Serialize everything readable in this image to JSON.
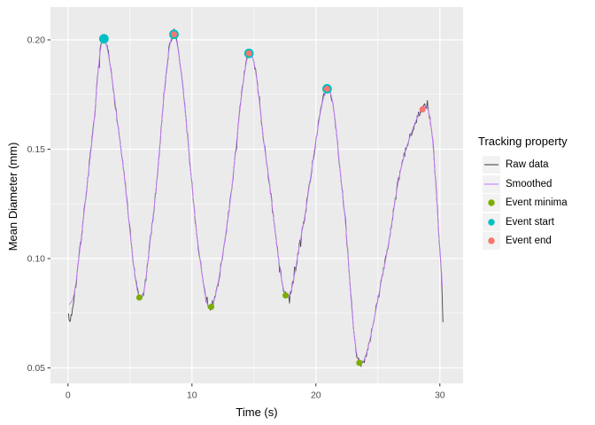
{
  "chart_data": {
    "type": "line",
    "title": "",
    "xlabel": "Time (s)",
    "ylabel": "Mean Diameter (mm)",
    "legend_title": "Tracking property",
    "legend_position": "right",
    "grid": true,
    "panel_bg": "#EBEBEB",
    "grid_color": "#FFFFFF",
    "key_bg": "#F2F2F2",
    "axis_text_color": "#4D4D4D",
    "x_domain": [
      -1.45,
      31.85
    ],
    "y_domain": [
      0.0428,
      0.2145
    ],
    "x_ticks": [
      0,
      10,
      20,
      30
    ],
    "x_tick_labels": [
      "0",
      "10",
      "20",
      "30"
    ],
    "x_minor_ticks": [
      5,
      15,
      25
    ],
    "y_ticks": [
      0.05,
      0.1,
      0.15,
      0.2
    ],
    "y_tick_labels": [
      "0.05",
      "0.10",
      "0.15",
      "0.20"
    ],
    "y_minor_ticks": [
      0.075,
      0.125,
      0.175
    ],
    "series": [
      {
        "name": "Raw data",
        "kind": "line",
        "color": "#454545",
        "width": 0.9,
        "noise_amplitude": 0.0016,
        "points": [
          [
            0.05,
            0.073
          ],
          [
            0.15,
            0.0715
          ],
          [
            0.5,
            0.082
          ],
          [
            1,
            0.106
          ],
          [
            2,
            0.157
          ],
          [
            2.9,
            0.2005
          ],
          [
            4.3,
            0.149
          ],
          [
            5.76,
            0.082
          ],
          [
            6.9,
            0.121
          ],
          [
            8.55,
            0.2025
          ],
          [
            10.5,
            0.106
          ],
          [
            11.55,
            0.0778
          ],
          [
            12.9,
            0.118
          ],
          [
            14.6,
            0.1938
          ],
          [
            16,
            0.145
          ],
          [
            17.55,
            0.0832
          ],
          [
            18.9,
            0.113
          ],
          [
            20.9,
            0.1776
          ],
          [
            22.2,
            0.127
          ],
          [
            23.5,
            0.0522
          ],
          [
            25.5,
            0.096
          ],
          [
            26.9,
            0.142
          ],
          [
            28.55,
            0.1685
          ],
          [
            29.3,
            0.16
          ],
          [
            29.9,
            0.113
          ],
          [
            30.18,
            0.0855
          ],
          [
            30.25,
            0.071
          ]
        ]
      },
      {
        "name": "Smoothed",
        "kind": "line",
        "color": "#C77CFF",
        "width": 0.9,
        "points": [
          [
            0.1,
            0.079
          ],
          [
            0.5,
            0.084
          ],
          [
            1,
            0.106
          ],
          [
            2,
            0.157
          ],
          [
            2.9,
            0.2005
          ],
          [
            4.3,
            0.149
          ],
          [
            5.76,
            0.082
          ],
          [
            6.9,
            0.121
          ],
          [
            8.55,
            0.2025
          ],
          [
            10.5,
            0.106
          ],
          [
            11.55,
            0.0778
          ],
          [
            12.9,
            0.118
          ],
          [
            14.6,
            0.1938
          ],
          [
            16,
            0.145
          ],
          [
            17.55,
            0.0832
          ],
          [
            18.9,
            0.113
          ],
          [
            20.9,
            0.1776
          ],
          [
            22.2,
            0.127
          ],
          [
            23.5,
            0.0522
          ],
          [
            25.5,
            0.096
          ],
          [
            26.9,
            0.142
          ],
          [
            28.55,
            0.1685
          ],
          [
            29.3,
            0.16
          ],
          [
            29.9,
            0.113
          ],
          [
            30.2,
            0.0875
          ]
        ]
      },
      {
        "name": "Event minima",
        "kind": "scatter",
        "color": "#7CAE00",
        "radius": 3.5,
        "points": [
          [
            5.76,
            0.0822
          ],
          [
            11.55,
            0.0779
          ],
          [
            17.55,
            0.0831
          ],
          [
            23.5,
            0.0523
          ]
        ]
      },
      {
        "name": "Event start",
        "kind": "scatter",
        "color": "#00BFC4",
        "radius": 5.4,
        "points": [
          [
            2.9,
            0.2005
          ],
          [
            8.55,
            0.2025
          ],
          [
            14.6,
            0.1938
          ],
          [
            20.9,
            0.1776
          ]
        ]
      },
      {
        "name": "Event end",
        "kind": "scatter",
        "color": "#F8766D",
        "radius": 3.5,
        "points": [
          [
            8.55,
            0.2025
          ],
          [
            14.6,
            0.1938
          ],
          [
            20.9,
            0.1776
          ],
          [
            28.6,
            0.1682
          ]
        ]
      }
    ]
  }
}
